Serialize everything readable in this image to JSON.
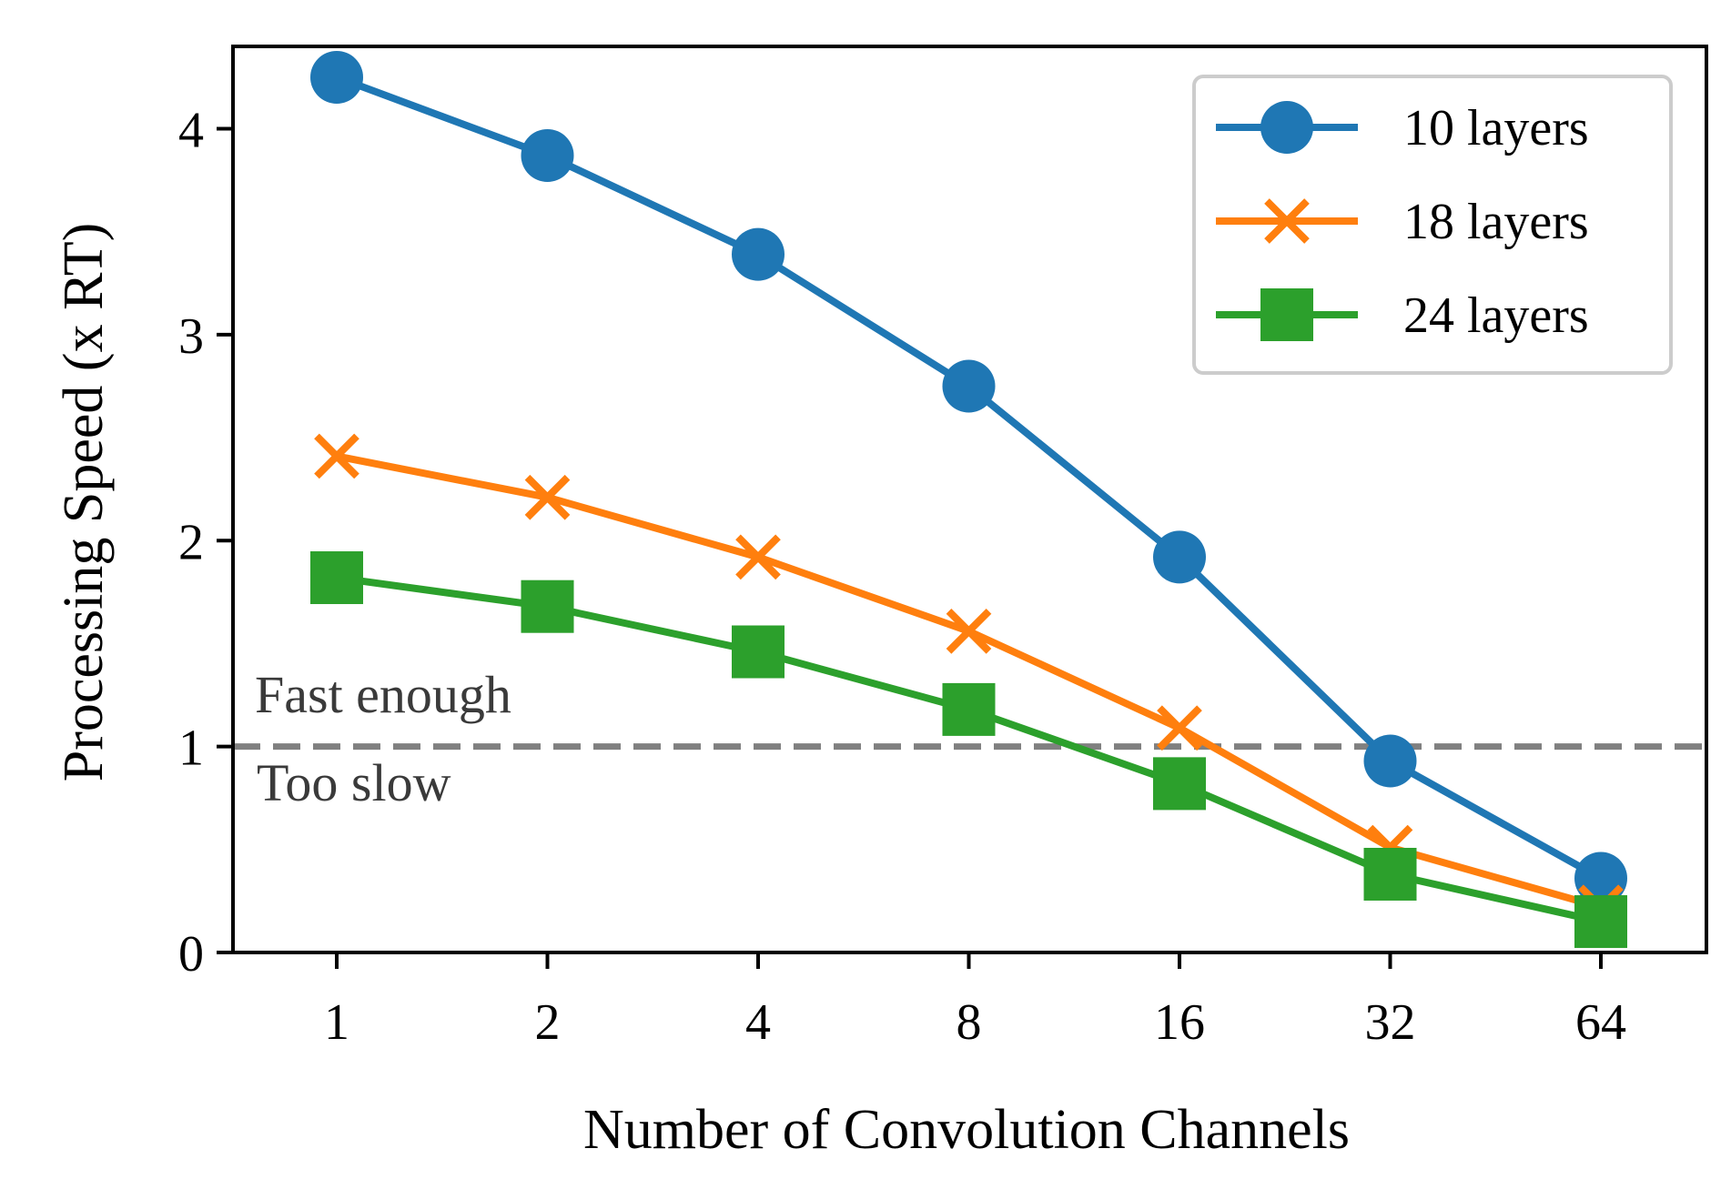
{
  "chart_data": {
    "type": "line",
    "title": "",
    "xlabel": "Number of Convolution Channels",
    "ylabel": "Processing Speed (x RT)",
    "categories": [
      "1",
      "2",
      "4",
      "8",
      "16",
      "32",
      "64"
    ],
    "yticks": [
      "0",
      "1",
      "2",
      "3",
      "4"
    ],
    "ylim": [
      0,
      4.4
    ],
    "grid": false,
    "legend_position": "top-right",
    "series": [
      {
        "name": "10 layers",
        "marker": "circle",
        "color": "#1f77b4",
        "values": [
          4.25,
          3.87,
          3.39,
          2.75,
          1.92,
          0.93,
          0.36
        ]
      },
      {
        "name": "18 layers",
        "marker": "x",
        "color": "#ff7f0e",
        "values": [
          2.41,
          2.21,
          1.92,
          1.56,
          1.09,
          0.51,
          0.22
        ]
      },
      {
        "name": "24 layers",
        "marker": "square",
        "color": "#2ca02c",
        "values": [
          1.82,
          1.68,
          1.46,
          1.18,
          0.82,
          0.38,
          0.15
        ]
      }
    ],
    "reference_line": {
      "y": 1.0,
      "color": "#808080",
      "style": "dashed"
    },
    "annotations": {
      "above": "Fast enough",
      "below": "Too slow"
    }
  }
}
